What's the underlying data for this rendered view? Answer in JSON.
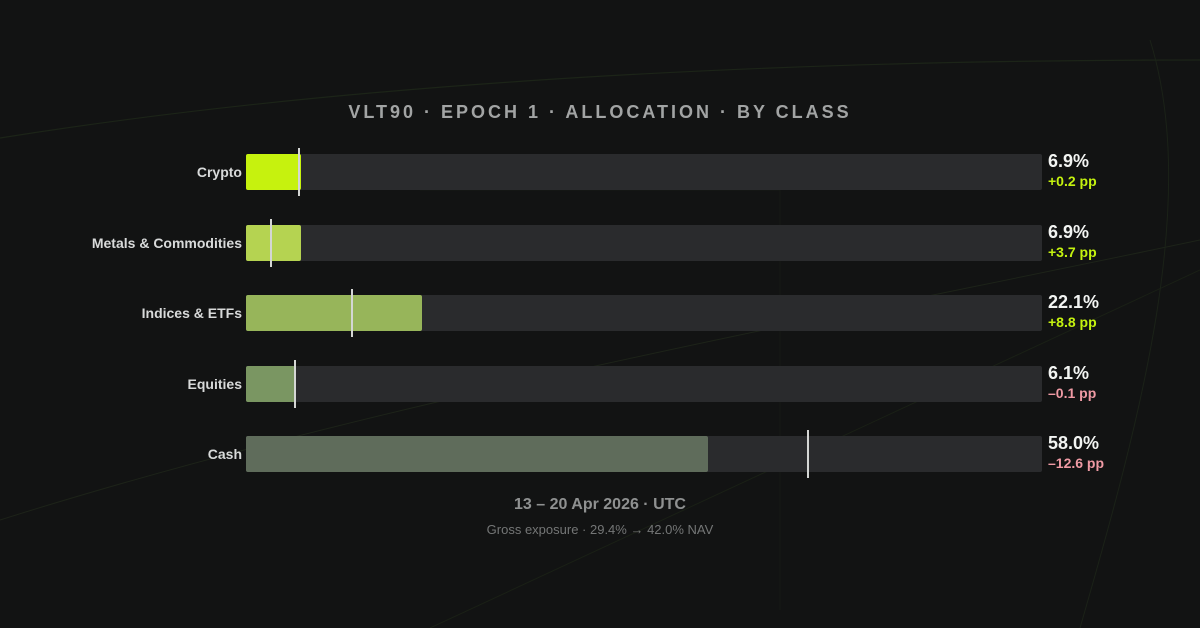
{
  "chart_data": {
    "type": "bar",
    "orientation": "horizontal",
    "title": "VLT90 · EPOCH 1 · ALLOCATION · BY CLASS",
    "categories": [
      "Crypto",
      "Metals & Commodities",
      "Indices & ETFs",
      "Equities",
      "Cash"
    ],
    "values": [
      6.9,
      6.9,
      22.1,
      6.1,
      58.0
    ],
    "value_labels": [
      "6.9%",
      "6.9%",
      "22.1%",
      "6.1%",
      "58.0%"
    ],
    "previous_values": [
      6.7,
      3.2,
      13.3,
      6.2,
      70.6
    ],
    "deltas": [
      0.2,
      3.7,
      8.8,
      -0.1,
      -12.6
    ],
    "delta_labels": [
      "+0.2 pp",
      "+3.7 pp",
      "+8.8 pp",
      "–0.1 pp",
      "–12.6 pp"
    ],
    "xlim": [
      0,
      100
    ],
    "grid": false,
    "legend": "none",
    "bar_colors": [
      "#c6f20e",
      "#b5d351",
      "#97b55a",
      "#7a9662",
      "#5f6c5b"
    ],
    "colors": {
      "track": "#2a2b2d",
      "marker": "#d4d6d4",
      "positive_delta": "#c4f20f",
      "negative_delta": "#ef9aa4",
      "value_text": "#f2f4f2"
    }
  },
  "footer": {
    "dates": "13 – 20 Apr 2026 · UTC",
    "exposure": "Gross exposure · 29.4% → 42.0% NAV"
  }
}
